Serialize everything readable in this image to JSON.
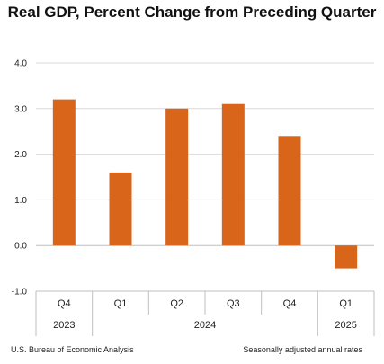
{
  "title": "Real GDP, Percent Change from Preceding Quarter",
  "source": "U.S. Bureau of Economic Analysis",
  "note": "Seasonally adjusted annual rates",
  "colors": {
    "bar": "#D9651B",
    "grid": "#d9d9d9",
    "axis": "#bfbfbf"
  },
  "chart_data": {
    "type": "bar",
    "title": "Real GDP, Percent Change from Preceding Quarter",
    "categories": [
      "Q4",
      "Q1",
      "Q2",
      "Q3",
      "Q4",
      "Q1"
    ],
    "category_groups": [
      {
        "label": "2023",
        "span": 1
      },
      {
        "label": "2024",
        "span": 4
      },
      {
        "label": "2025",
        "span": 1
      }
    ],
    "values": [
      3.2,
      1.6,
      3.0,
      3.1,
      2.4,
      -0.5
    ],
    "ylim": [
      -1.0,
      4.0
    ],
    "yticks": [
      "4.0",
      "3.0",
      "2.0",
      "1.0",
      "0.0",
      "-1.0"
    ],
    "xlabel": "",
    "ylabel": "",
    "grid": true,
    "legend": "none"
  }
}
